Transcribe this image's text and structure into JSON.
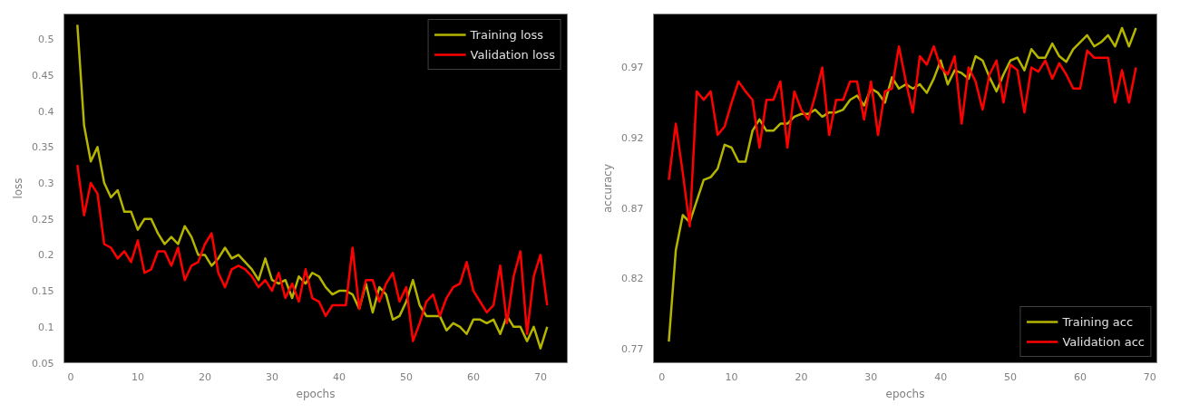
{
  "chart_data": [
    {
      "type": "line",
      "xlabel": "epochs",
      "ylabel": "loss",
      "xlim": [
        -1,
        74
      ],
      "ylim": [
        0.05,
        0.535
      ],
      "xticks": [
        0,
        10,
        20,
        30,
        40,
        50,
        60,
        70
      ],
      "yticks": [
        0.05,
        0.1,
        0.15,
        0.2,
        0.25,
        0.3,
        0.35,
        0.4,
        0.45,
        0.5
      ],
      "grid": false,
      "legend": "top right",
      "marker": "none",
      "line_style": "solid",
      "x": [
        1,
        2,
        3,
        4,
        5,
        6,
        7,
        8,
        9,
        10,
        11,
        12,
        13,
        14,
        15,
        16,
        17,
        18,
        19,
        20,
        21,
        22,
        23,
        24,
        25,
        26,
        27,
        28,
        29,
        30,
        31,
        32,
        33,
        34,
        35,
        36,
        37,
        38,
        39,
        40,
        41,
        42,
        43,
        44,
        45,
        46,
        47,
        48,
        49,
        50,
        51,
        52,
        53,
        54,
        55,
        56,
        57,
        58,
        59,
        60,
        61,
        62,
        63,
        64,
        65,
        66,
        67,
        68,
        69,
        70,
        71
      ],
      "series": [
        {
          "name": "Training loss",
          "color": "#b5b500",
          "values": [
            0.52,
            0.38,
            0.33,
            0.35,
            0.3,
            0.28,
            0.29,
            0.26,
            0.26,
            0.235,
            0.25,
            0.25,
            0.23,
            0.215,
            0.225,
            0.215,
            0.24,
            0.225,
            0.2,
            0.2,
            0.185,
            0.195,
            0.21,
            0.195,
            0.2,
            0.19,
            0.18,
            0.165,
            0.195,
            0.165,
            0.16,
            0.165,
            0.14,
            0.17,
            0.16,
            0.175,
            0.17,
            0.155,
            0.145,
            0.15,
            0.15,
            0.145,
            0.125,
            0.16,
            0.12,
            0.155,
            0.145,
            0.11,
            0.115,
            0.135,
            0.165,
            0.13,
            0.115,
            0.115,
            0.115,
            0.095,
            0.105,
            0.1,
            0.09,
            0.11,
            0.11,
            0.105,
            0.11,
            0.09,
            0.115,
            0.1,
            0.1,
            0.08,
            0.1,
            0.07,
            0.1
          ]
        },
        {
          "name": "Validation loss",
          "color": "#ff0000",
          "values": [
            0.325,
            0.255,
            0.3,
            0.285,
            0.215,
            0.21,
            0.195,
            0.205,
            0.19,
            0.22,
            0.175,
            0.18,
            0.205,
            0.205,
            0.185,
            0.21,
            0.165,
            0.185,
            0.19,
            0.215,
            0.23,
            0.175,
            0.155,
            0.18,
            0.185,
            0.18,
            0.17,
            0.155,
            0.165,
            0.15,
            0.175,
            0.14,
            0.16,
            0.135,
            0.18,
            0.14,
            0.135,
            0.115,
            0.13,
            0.13,
            0.13,
            0.21,
            0.125,
            0.165,
            0.165,
            0.135,
            0.16,
            0.175,
            0.135,
            0.155,
            0.08,
            0.105,
            0.135,
            0.145,
            0.115,
            0.14,
            0.155,
            0.16,
            0.19,
            0.15,
            0.135,
            0.12,
            0.13,
            0.185,
            0.105,
            0.17,
            0.205,
            0.09,
            0.17,
            0.2,
            0.13
          ]
        }
      ]
    },
    {
      "type": "line",
      "xlabel": "epochs",
      "ylabel": "accuracy",
      "xlim": [
        -1.2,
        71
      ],
      "ylim": [
        0.76,
        1.008
      ],
      "xticks": [
        0,
        10,
        20,
        30,
        40,
        50,
        60,
        70
      ],
      "yticks": [
        0.77,
        0.82,
        0.87,
        0.92,
        0.97
      ],
      "grid": false,
      "legend": "bottom right",
      "marker": "none",
      "line_style": "solid",
      "x": [
        1,
        2,
        3,
        4,
        5,
        6,
        7,
        8,
        9,
        10,
        11,
        12,
        13,
        14,
        15,
        16,
        17,
        18,
        19,
        20,
        21,
        22,
        23,
        24,
        25,
        26,
        27,
        28,
        29,
        30,
        31,
        32,
        33,
        34,
        35,
        36,
        37,
        38,
        39,
        40,
        41,
        42,
        43,
        44,
        45,
        46,
        47,
        48,
        49,
        50,
        51,
        52,
        53,
        54,
        55,
        56,
        57,
        58,
        59,
        60,
        61,
        62,
        63,
        64,
        65,
        66,
        67,
        68
      ],
      "series": [
        {
          "name": "Training acc",
          "color": "#b5b500",
          "values": [
            0.775,
            0.84,
            0.865,
            0.86,
            0.875,
            0.89,
            0.892,
            0.898,
            0.915,
            0.913,
            0.903,
            0.903,
            0.925,
            0.933,
            0.925,
            0.925,
            0.93,
            0.93,
            0.935,
            0.937,
            0.937,
            0.94,
            0.935,
            0.938,
            0.938,
            0.94,
            0.947,
            0.95,
            0.943,
            0.955,
            0.952,
            0.945,
            0.963,
            0.955,
            0.958,
            0.955,
            0.958,
            0.952,
            0.962,
            0.975,
            0.958,
            0.968,
            0.966,
            0.962,
            0.978,
            0.975,
            0.963,
            0.953,
            0.965,
            0.975,
            0.977,
            0.968,
            0.983,
            0.977,
            0.977,
            0.987,
            0.978,
            0.974,
            0.983,
            0.988,
            0.993,
            0.985,
            0.988,
            0.993,
            0.985,
            0.998,
            0.985,
            0.998
          ]
        },
        {
          "name": "Validation acc",
          "color": "#ff0000",
          "values": [
            0.89,
            0.93,
            0.895,
            0.857,
            0.953,
            0.947,
            0.953,
            0.922,
            0.928,
            0.945,
            0.96,
            0.953,
            0.947,
            0.913,
            0.947,
            0.947,
            0.96,
            0.913,
            0.953,
            0.94,
            0.933,
            0.95,
            0.97,
            0.922,
            0.947,
            0.947,
            0.96,
            0.96,
            0.933,
            0.96,
            0.922,
            0.953,
            0.955,
            0.985,
            0.96,
            0.938,
            0.978,
            0.972,
            0.985,
            0.97,
            0.965,
            0.978,
            0.93,
            0.97,
            0.96,
            0.94,
            0.965,
            0.975,
            0.945,
            0.972,
            0.968,
            0.938,
            0.97,
            0.967,
            0.975,
            0.962,
            0.973,
            0.965,
            0.955,
            0.955,
            0.982,
            0.977,
            0.977,
            0.977,
            0.945,
            0.968,
            0.945,
            0.97
          ]
        }
      ]
    }
  ]
}
